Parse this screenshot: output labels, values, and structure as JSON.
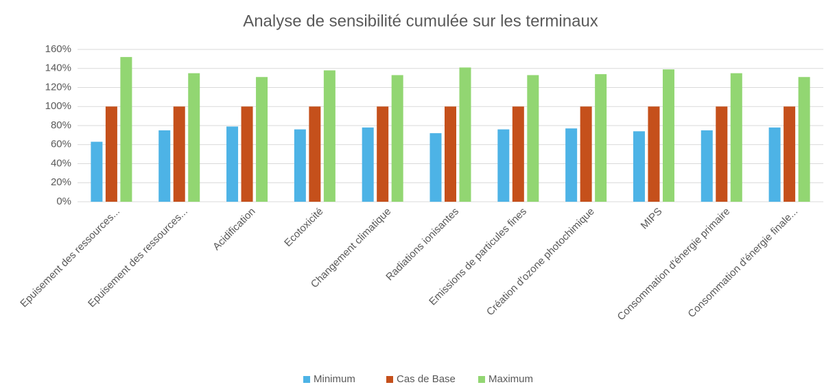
{
  "chart_data": {
    "type": "bar",
    "title": "Analyse de sensibilité cumulée sur les terminaux",
    "categories": [
      "Epuisement des ressources...",
      "Epuisement des ressources...",
      "Acidification",
      "Ecotoxicité",
      "Changement climatique",
      "Radiations ionisantes",
      "Emissions de particules fines",
      "Création d'ozone photochimique",
      "MIPS",
      "Consommation d'énergie primaire",
      "Consommation d'énergie finale..."
    ],
    "series": [
      {
        "name": "Minimum",
        "color": "#4db3e6",
        "values": [
          63,
          75,
          79,
          76,
          78,
          72,
          76,
          77,
          74,
          75,
          78
        ]
      },
      {
        "name": "Cas de Base",
        "color": "#c5501b",
        "values": [
          100,
          100,
          100,
          100,
          100,
          100,
          100,
          100,
          100,
          100,
          100
        ]
      },
      {
        "name": "Maximum",
        "color": "#92d672",
        "values": [
          152,
          135,
          131,
          138,
          133,
          141,
          133,
          134,
          139,
          135,
          131
        ]
      }
    ],
    "ylim": [
      0,
      160
    ],
    "yticks": [
      {
        "value": 0,
        "label": "0%"
      },
      {
        "value": 20,
        "label": "20%"
      },
      {
        "value": 40,
        "label": "40%"
      },
      {
        "value": 60,
        "label": "60%"
      },
      {
        "value": 80,
        "label": "80%"
      },
      {
        "value": 100,
        "label": "100%"
      },
      {
        "value": 120,
        "label": "120%"
      },
      {
        "value": 140,
        "label": "140%"
      },
      {
        "value": 160,
        "label": "160%"
      }
    ],
    "grid": true,
    "legend": "bottom"
  }
}
